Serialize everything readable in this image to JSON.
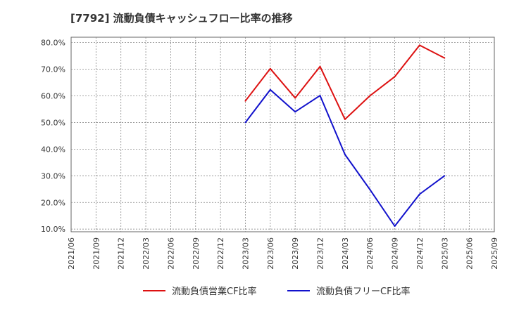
{
  "chart_data": {
    "type": "line",
    "title": "[7792]  流動負債キャッシュフロー比率の推移",
    "xlabel": "",
    "ylabel": "",
    "ylim": [
      9,
      82
    ],
    "grid": true,
    "legend_position": "bottom",
    "x": [
      "2021/06",
      "2021/09",
      "2021/12",
      "2022/03",
      "2022/06",
      "2022/09",
      "2022/12",
      "2023/03",
      "2023/06",
      "2023/09",
      "2023/12",
      "2024/03",
      "2024/06",
      "2024/09",
      "2024/12",
      "2025/03",
      "2025/06",
      "2025/09"
    ],
    "y_ticks": [
      10,
      20,
      30,
      40,
      50,
      60,
      70,
      80
    ],
    "y_tick_labels": [
      "10.0%",
      "20.0%",
      "30.0%",
      "40.0%",
      "50.0%",
      "60.0%",
      "70.0%",
      "80.0%"
    ],
    "series": [
      {
        "name": "流動負債営業CF比率",
        "color": "#dd1111",
        "points": [
          {
            "x": "2023/03",
            "y": 58.1
          },
          {
            "x": "2023/06",
            "y": 70.2
          },
          {
            "x": "2023/09",
            "y": 59.2
          },
          {
            "x": "2023/12",
            "y": 71.0
          },
          {
            "x": "2024/03",
            "y": 51.2
          },
          {
            "x": "2024/06",
            "y": 60.0
          },
          {
            "x": "2024/09",
            "y": 67.2
          },
          {
            "x": "2024/12",
            "y": 79.0
          },
          {
            "x": "2025/03",
            "y": 74.2
          }
        ]
      },
      {
        "name": "流動負債フリーCF比率",
        "color": "#1111cc",
        "points": [
          {
            "x": "2023/03",
            "y": 50.0
          },
          {
            "x": "2023/06",
            "y": 62.3
          },
          {
            "x": "2023/09",
            "y": 54.0
          },
          {
            "x": "2023/12",
            "y": 60.1
          },
          {
            "x": "2024/03",
            "y": 38.0
          },
          {
            "x": "2024/06",
            "y": 24.9
          },
          {
            "x": "2024/09",
            "y": 11.1
          },
          {
            "x": "2024/12",
            "y": 23.1
          },
          {
            "x": "2025/03",
            "y": 30.0
          }
        ]
      }
    ]
  }
}
